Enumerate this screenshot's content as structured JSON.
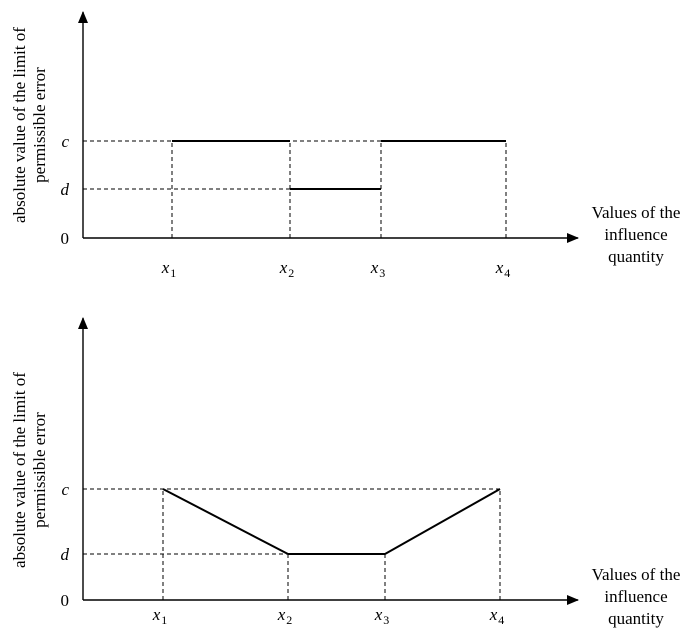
{
  "chart_data": [
    {
      "type": "line",
      "ylabel": [
        "absolute value of the limit of",
        "permissible error"
      ],
      "xlabel": [
        "Values of the",
        "influence",
        "quantity"
      ],
      "origin_label": "0",
      "y_levels": [
        {
          "name": "c",
          "value": 2
        },
        {
          "name": "d",
          "value": 1
        }
      ],
      "x_ticks": [
        {
          "base": "x",
          "sub": "1",
          "value": 1
        },
        {
          "base": "x",
          "sub": "2",
          "value": 2
        },
        {
          "base": "x",
          "sub": "3",
          "value": 3
        },
        {
          "base": "x",
          "sub": "4",
          "value": 4
        }
      ],
      "series": [
        {
          "values": [
            [
              1,
              2
            ],
            [
              2,
              2
            ]
          ]
        },
        {
          "values": [
            [
              2,
              1
            ],
            [
              3,
              1
            ]
          ]
        },
        {
          "values": [
            [
              3,
              2
            ],
            [
              4,
              2
            ]
          ]
        }
      ]
    },
    {
      "type": "line",
      "ylabel": [
        "absolute value of the limit of",
        "permissible error"
      ],
      "xlabel": [
        "Values of the",
        "influence",
        "quantity"
      ],
      "origin_label": "0",
      "y_levels": [
        {
          "name": "c",
          "value": 2
        },
        {
          "name": "d",
          "value": 1
        }
      ],
      "x_ticks": [
        {
          "base": "x",
          "sub": "1",
          "value": 1
        },
        {
          "base": "x",
          "sub": "2",
          "value": 2
        },
        {
          "base": "x",
          "sub": "3",
          "value": 3
        },
        {
          "base": "x",
          "sub": "4",
          "value": 4
        }
      ],
      "series": [
        {
          "values": [
            [
              1,
              2
            ],
            [
              2,
              1
            ],
            [
              3,
              1
            ],
            [
              4,
              2
            ]
          ]
        }
      ]
    }
  ]
}
